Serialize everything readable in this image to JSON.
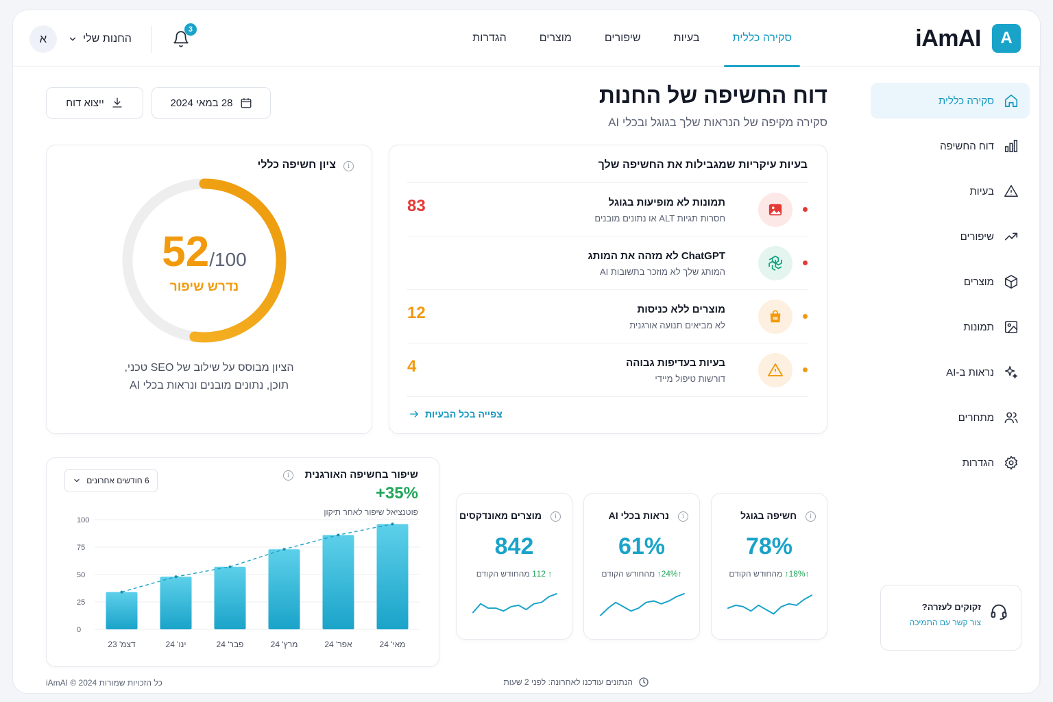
{
  "brand": {
    "name": "iAmAI",
    "badge": "A"
  },
  "topnav": {
    "tabs": [
      {
        "label": "סקירה כללית",
        "active": true
      },
      {
        "label": "בעיות"
      },
      {
        "label": "שיפורים"
      },
      {
        "label": "מוצרים"
      },
      {
        "label": "הגדרות"
      }
    ]
  },
  "user": {
    "store_label": "החנות שלי",
    "avatar_letter": "א",
    "notifications": "3"
  },
  "sidebar": {
    "items": [
      {
        "label": "סקירה כללית",
        "icon": "home-icon",
        "active": true
      },
      {
        "label": "דוח החשיפה",
        "icon": "bar-chart-icon"
      },
      {
        "label": "בעיות",
        "icon": "warning-icon"
      },
      {
        "label": "שיפורים",
        "icon": "trending-up-icon"
      },
      {
        "label": "מוצרים",
        "icon": "box-icon"
      },
      {
        "label": "תמונות",
        "icon": "image-icon"
      },
      {
        "label": "נראות ב-AI",
        "icon": "sparkle-icon"
      },
      {
        "label": "מתחרים",
        "icon": "users-icon"
      },
      {
        "label": "הגדרות",
        "icon": "gear-icon"
      }
    ],
    "help": {
      "title": "זקוקים לעזרה?",
      "link": "צור קשר עם התמיכה"
    }
  },
  "header": {
    "title": "דוח החשיפה של החנות",
    "subtitle": "סקירה מקיפה של הנראות שלך בגוגל ובכלי AI",
    "date": "28 במאי 2024",
    "export": "ייצוא דוח"
  },
  "score": {
    "title": "ציון חשיפה כללי",
    "value": 52,
    "value_text": "52",
    "max_text": "/100",
    "status": "נדרש שיפור",
    "desc_line1": "הציון מבוסס על שילוב של SEO טכני,",
    "desc_line2": "תוכן, נתונים מובנים ונראות בכלי AI"
  },
  "issues": {
    "title": "בעיות עיקריות שמגבילות את החשיפה שלך",
    "items": [
      {
        "title": "תמונות לא מופיעות בגוגל",
        "desc": "חסרות תגיות ALT או נתונים מובנים",
        "count": "83",
        "color": "#e53935",
        "icon": "image-icon",
        "icon_bg": "#fde8e8"
      },
      {
        "title": "ChatGPT לא מזהה את המותג",
        "desc": "המותג שלך לא מוזכר בתשובות AI",
        "count": "",
        "color": "#e53935",
        "icon": "openai-icon",
        "icon_bg": "#e3f5ee"
      },
      {
        "title": "מוצרים ללא כניסות",
        "desc": "לא מביאים תנועה אורגנית",
        "count": "12",
        "color": "#f29a0e",
        "icon": "shopping-bag-icon",
        "icon_bg": "#fdf0e0"
      },
      {
        "title": "בעיות בעדיפות גבוהה",
        "desc": "דורשות טיפול מיידי",
        "count": "4",
        "color": "#f29a0e",
        "icon": "warning-icon",
        "icon_bg": "#fdf0e0"
      }
    ],
    "view_all": "צפייה בכל הבעיות"
  },
  "growth": {
    "title": "שיפור בחשיפה האורגנית",
    "period": "6 חודשים אחרונים",
    "potential": "+35%",
    "potential_label": "פוטנציאל שיפור לאחר תיקון"
  },
  "chart_data": {
    "type": "bar",
    "categories": [
      "דצמ' 23",
      "ינו' 24",
      "פבר' 24",
      "מרץ' 24",
      "אפר' 24",
      "מאי' 24"
    ],
    "values": [
      34,
      48,
      57,
      73,
      86,
      96
    ],
    "ylim": [
      0,
      100
    ],
    "yticks": [
      0,
      25,
      50,
      75,
      100
    ],
    "trend_line": "dashed",
    "grid": true,
    "color": "#1aa3c9"
  },
  "metrics": [
    {
      "title": "חשיפה בגוגל",
      "value": "78%",
      "delta": "18%",
      "delta_label": "מהחודש הקודם",
      "spark": [
        0.45,
        0.55,
        0.5,
        0.35,
        0.55,
        0.4,
        0.25,
        0.5,
        0.6,
        0.55,
        0.75,
        0.9
      ]
    },
    {
      "title": "נראות בכלי AI",
      "value": "61%",
      "delta": "24%",
      "delta_label": "מהחודש הקודם",
      "spark": [
        0.2,
        0.45,
        0.65,
        0.5,
        0.35,
        0.45,
        0.65,
        0.7,
        0.6,
        0.7,
        0.85,
        0.95
      ]
    },
    {
      "title": "מוצרים מאונדקסים",
      "value": "842",
      "delta": "112",
      "delta_label": "מהחודש הקודם",
      "spark": [
        0.3,
        0.6,
        0.45,
        0.45,
        0.35,
        0.5,
        0.55,
        0.4,
        0.6,
        0.65,
        0.85,
        0.95
      ]
    }
  ],
  "footer": {
    "updated": "הנתונים עודכנו לאחרונה: לפני 2 שעות",
    "copyright": "כל הזכויות שמורות iAmAI © 2024"
  }
}
